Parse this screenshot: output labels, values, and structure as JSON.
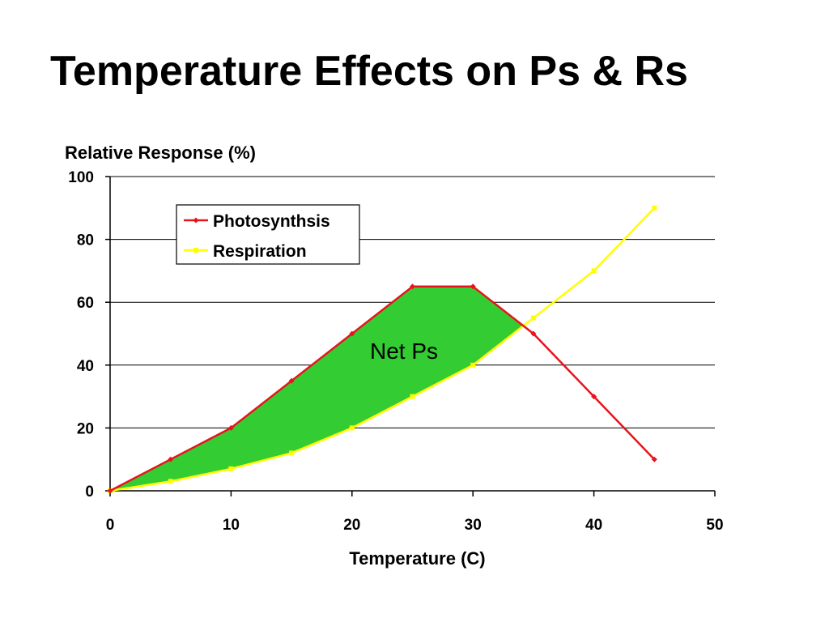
{
  "slide": {
    "title": "Temperature Effects on Ps & Rs"
  },
  "chart_data": {
    "type": "line",
    "title": "",
    "xlabel": "Temperature (C)",
    "ylabel": "Relative Response (%)",
    "xlim": [
      0,
      50
    ],
    "ylim": [
      0,
      100
    ],
    "x_ticks": [
      0,
      10,
      20,
      30,
      40,
      50
    ],
    "y_ticks": [
      0,
      20,
      40,
      60,
      80,
      100
    ],
    "grid": "horizontal",
    "legend_position": "top-left",
    "series": [
      {
        "name": "Photosynthsis",
        "color": "#e8141c",
        "marker": "diamond",
        "x": [
          0,
          5,
          10,
          15,
          20,
          25,
          30,
          35,
          40,
          45
        ],
        "y": [
          0,
          10,
          20,
          35,
          50,
          65,
          65,
          50,
          30,
          10
        ]
      },
      {
        "name": "Respiration",
        "color": "#ffff00",
        "marker": "square",
        "x": [
          0,
          5,
          10,
          15,
          20,
          25,
          30,
          35,
          40,
          45
        ],
        "y": [
          0,
          3,
          7,
          12,
          20,
          30,
          40,
          55,
          70,
          90
        ]
      }
    ],
    "annotations": [
      {
        "text": "Net Ps",
        "x": 25,
        "y": 44,
        "fill": "#33cc33",
        "description_region": "between Photosynthsis and Respiration"
      }
    ]
  }
}
